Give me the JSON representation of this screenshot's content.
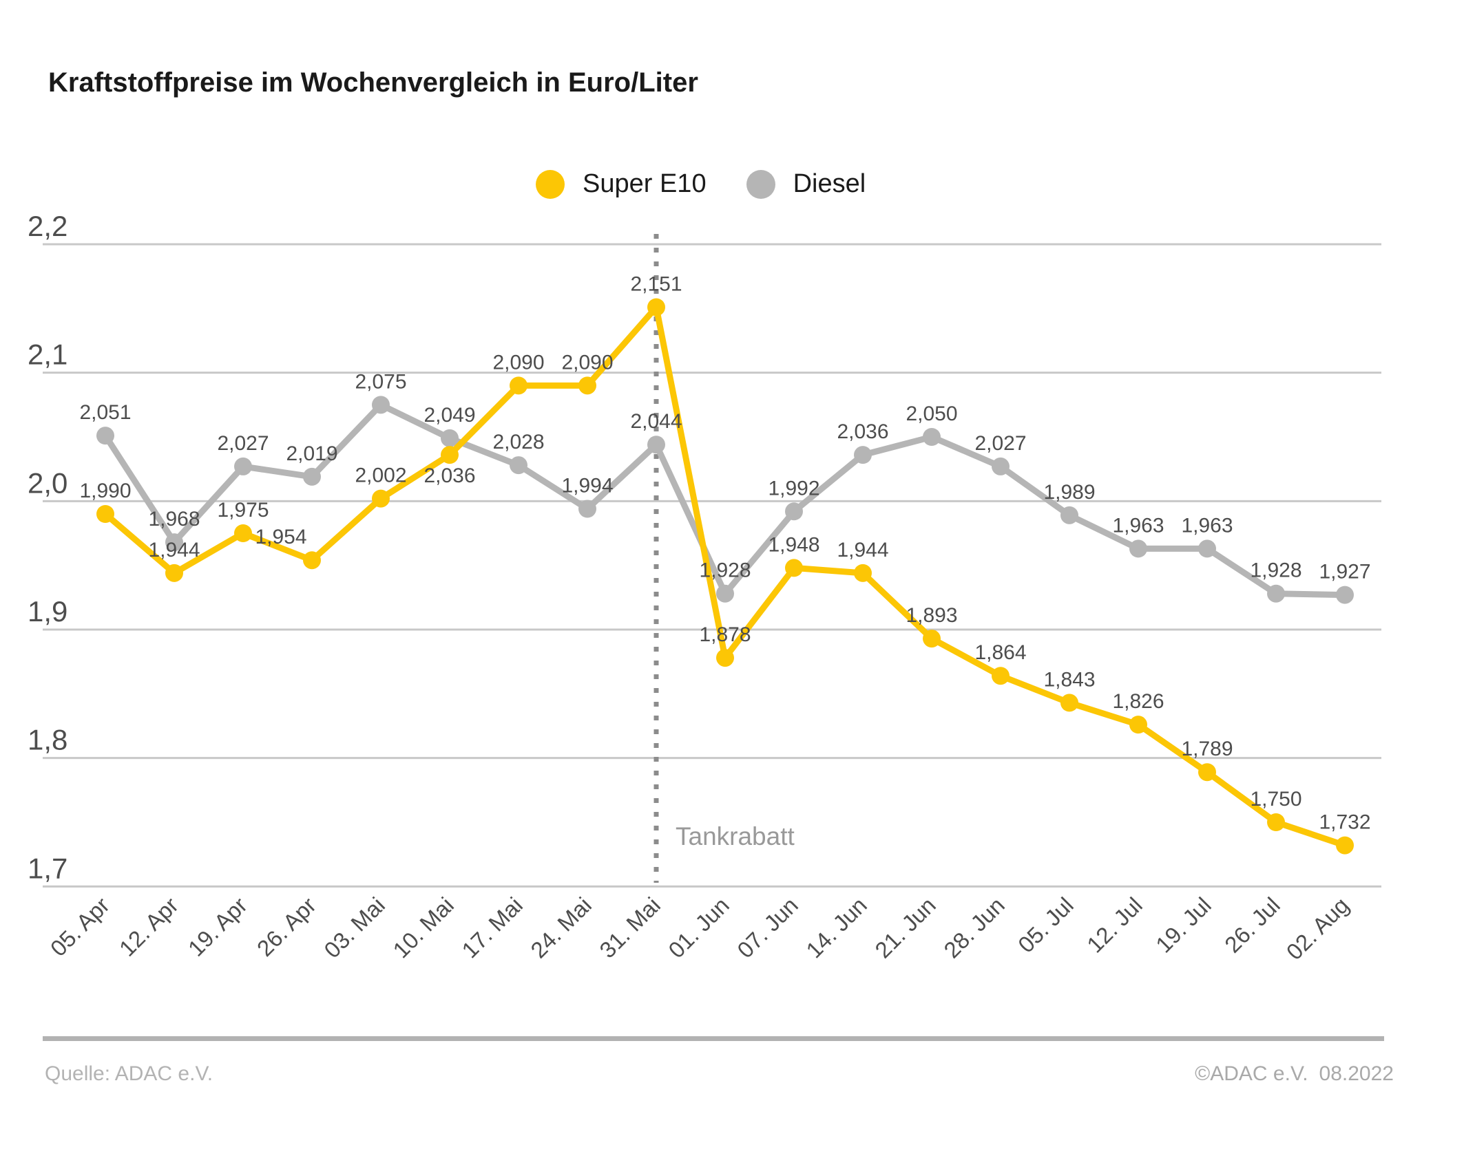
{
  "title": "Kraftstoffpreise im Wochenvergleich in Euro/Liter",
  "chart_data": {
    "type": "line",
    "title": "Kraftstoffpreise im Wochenvergleich in Euro/Liter",
    "unit": "Euro/Liter",
    "categories": [
      "05. Apr",
      "12. Apr",
      "19. Apr",
      "26. Apr",
      "03. Mai",
      "10. Mai",
      "17. Mai",
      "24. Mai",
      "31. Mai",
      "01. Jun",
      "07. Jun",
      "14. Jun",
      "21. Jun",
      "28. Jun",
      "05. Jul",
      "12. Jul",
      "19. Jul",
      "26. Jul",
      "02. Aug"
    ],
    "series": [
      {
        "name": "Super E10",
        "color": "#FCC605",
        "values": [
          1.99,
          1.944,
          1.975,
          1.954,
          2.002,
          2.036,
          2.09,
          2.09,
          2.151,
          1.878,
          1.948,
          1.944,
          1.893,
          1.864,
          1.843,
          1.826,
          1.789,
          1.75,
          1.732
        ]
      },
      {
        "name": "Diesel",
        "color": "#B5B5B5",
        "values": [
          2.051,
          1.968,
          2.027,
          2.019,
          2.075,
          2.049,
          2.028,
          1.994,
          2.044,
          1.928,
          1.992,
          2.036,
          2.05,
          2.027,
          1.989,
          1.963,
          1.963,
          1.928,
          1.927
        ]
      }
    ],
    "y_ticks": [
      2.2,
      2.1,
      2.0,
      1.9,
      1.8,
      1.7
    ],
    "ylim": [
      1.7,
      2.2
    ],
    "grid": true,
    "legend_position": "top",
    "annotation": {
      "label": "Tankrabatt",
      "category": "31. Mai"
    },
    "colors": {
      "grid": "#C8C8C8",
      "axis_text": "#4D4D4D",
      "label": "#4D4D4D",
      "annotation_line": "#8C8C8C",
      "annotation_text": "#999999"
    }
  },
  "footer": {
    "source": "Quelle: ADAC e.V.",
    "copyright": "©ADAC e.V.",
    "date": "08.2022"
  }
}
